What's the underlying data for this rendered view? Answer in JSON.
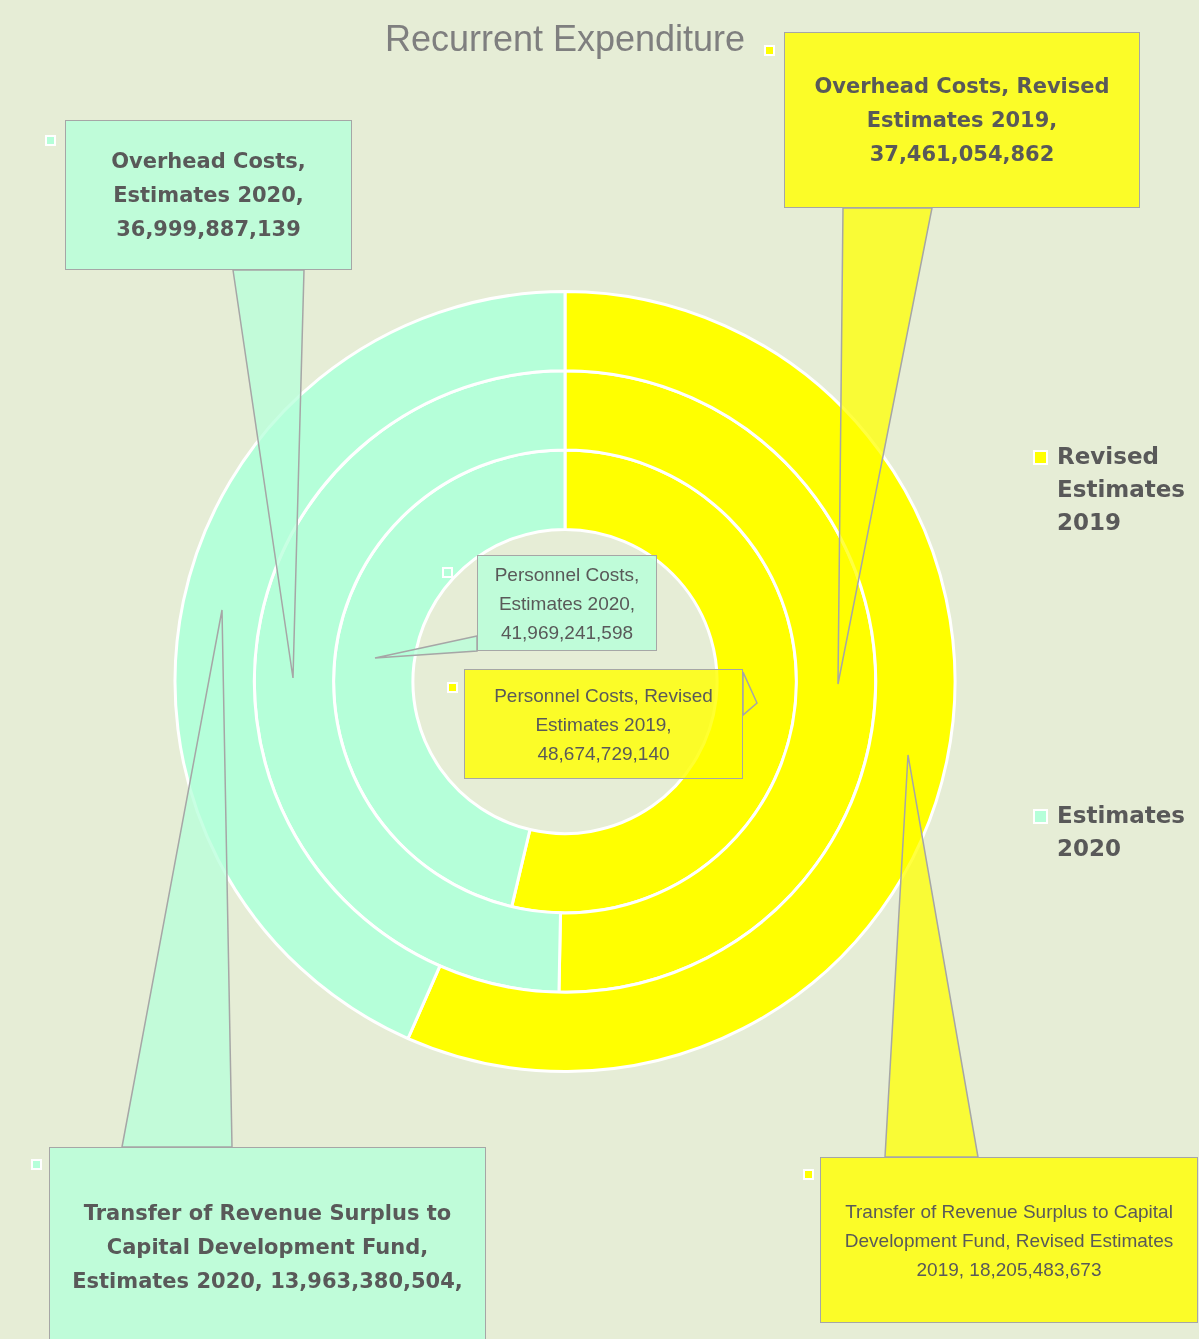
{
  "chart_data": {
    "type": "donut",
    "title": "Recurrent Expenditure",
    "categories": [
      "Revised Estimates 2019",
      "Estimates 2020"
    ],
    "colors": [
      "#ffff00",
      "#b5ffd9"
    ],
    "legend": "right",
    "series": [
      {
        "values": [
          18205483673,
          13963380504
        ],
        "value_labels": [
          "Transfer of Revenue Surplus to Capital Development Fund, Revised Estimates 2019, 18,205,483,673",
          "Transfer of Revenue Surplus to Capital Development Fund, Estimates 2020, 13,963,380,504,"
        ]
      },
      {
        "values": [
          37461054862,
          36999887139
        ],
        "value_labels": [
          "Overhead Costs, Revised Estimates 2019, 37,461,054,862",
          "Overhead Costs, Estimates 2020, 36,999,887,139"
        ]
      },
      {
        "values": [
          48674729140,
          41969241598
        ],
        "value_labels": [
          "Personnel Costs, Revised Estimates 2019, 48,674,729,140",
          "Personnel Costs, Estimates 2020, 41,969,241,598"
        ]
      }
    ]
  }
}
